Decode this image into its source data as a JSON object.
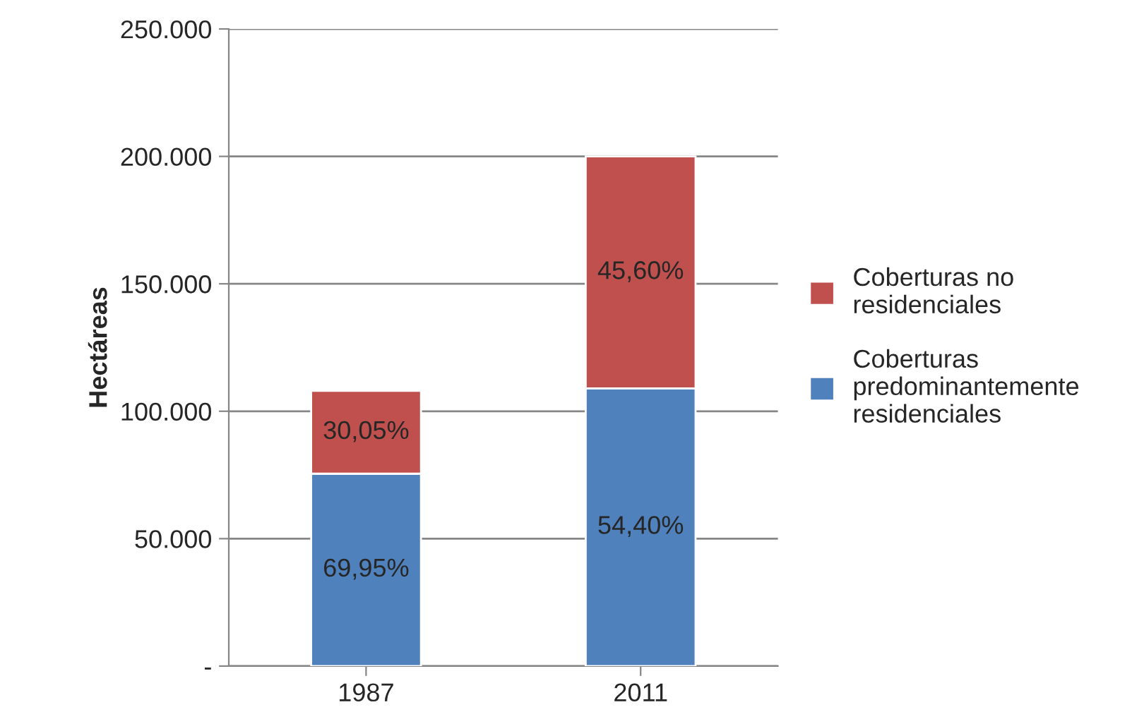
{
  "chart_data": {
    "type": "bar",
    "stacked": true,
    "categories": [
      "1987",
      "2011"
    ],
    "series": [
      {
        "name": "Coberturas\npredominantemente\nresidenciales",
        "color": "#4f81bd",
        "values": [
          75500,
          109000
        ]
      },
      {
        "name": "Coberturas no\nresidenciales",
        "color": "#c0504d",
        "values": [
          32500,
          91000
        ]
      }
    ],
    "annotations": [
      "69,95%",
      "54,40%",
      "30,05%",
      "45,60%"
    ],
    "ylabel": "Hectáreas",
    "ylim": [
      0,
      250000
    ],
    "yticks": [
      {
        "value": 0,
        "label": "-"
      },
      {
        "value": 50000,
        "label": "50.000"
      },
      {
        "value": 100000,
        "label": "100.000"
      },
      {
        "value": 150000,
        "label": "150.000"
      },
      {
        "value": 200000,
        "label": "200.000"
      },
      {
        "value": 250000,
        "label": "250.000"
      }
    ],
    "grid": "y",
    "legend": "right"
  }
}
